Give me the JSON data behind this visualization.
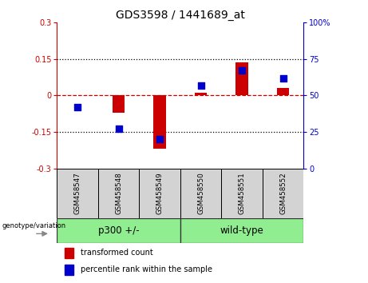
{
  "title": "GDS3598 / 1441689_at",
  "samples": [
    "GSM458547",
    "GSM458548",
    "GSM458549",
    "GSM458550",
    "GSM458551",
    "GSM458552"
  ],
  "transformed_count": [
    0.0,
    -0.07,
    -0.22,
    0.01,
    0.135,
    0.03
  ],
  "percentile_rank": [
    42,
    27,
    20,
    57,
    67,
    62
  ],
  "red_color": "#CC0000",
  "blue_color": "#0000CC",
  "bg_sample": "#D3D3D3",
  "bg_group": "#90EE90",
  "ylim_left": [
    -0.3,
    0.3
  ],
  "ylim_right": [
    0,
    100
  ],
  "yticks_left": [
    -0.3,
    -0.15,
    0.0,
    0.15,
    0.3
  ],
  "yticks_right": [
    0,
    25,
    50,
    75,
    100
  ],
  "yticklabels_left": [
    "-0.3",
    "-0.15",
    "0",
    "0.15",
    "0.3"
  ],
  "yticklabels_right": [
    "0",
    "25",
    "50",
    "75",
    "100%"
  ],
  "bar_width": 0.3,
  "dot_size": 28,
  "legend_labels": [
    "transformed count",
    "percentile rank within the sample"
  ],
  "group_label": "genotype/variation",
  "groups": [
    {
      "label": "p300 +/-",
      "start": 0,
      "end": 3
    },
    {
      "label": "wild-type",
      "start": 3,
      "end": 6
    }
  ]
}
